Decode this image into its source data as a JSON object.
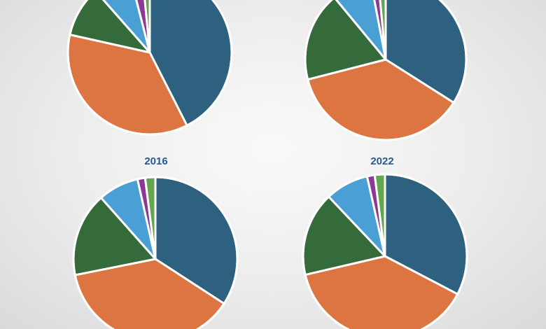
{
  "colors": {
    "palette": [
      "#2e607f",
      "#dc7541",
      "#356b3a",
      "#4a9fd4",
      "#8e3794",
      "#63a64f"
    ],
    "slice_border": "#ffffff"
  },
  "chart_data": [
    {
      "type": "pie",
      "title": "",
      "categories": [
        "",
        "",
        "",
        "",
        "",
        ""
      ],
      "values": [
        42.5,
        36,
        10,
        7.5,
        2.5,
        1.5
      ]
    },
    {
      "type": "pie",
      "title": "",
      "categories": [
        "",
        "",
        "",
        "",
        "",
        ""
      ],
      "values": [
        34,
        37,
        18,
        8,
        1.5,
        1.5
      ]
    },
    {
      "type": "pie",
      "title": "2016",
      "categories": [
        "",
        "",
        "",
        "",
        "",
        ""
      ],
      "values": [
        34,
        37.5,
        16.5,
        8,
        1.5,
        2
      ]
    },
    {
      "type": "pie",
      "title": "2022",
      "categories": [
        "",
        "",
        "",
        "",
        "",
        ""
      ],
      "values": [
        32.5,
        38.5,
        16.5,
        8.5,
        1.5,
        2
      ]
    }
  ]
}
